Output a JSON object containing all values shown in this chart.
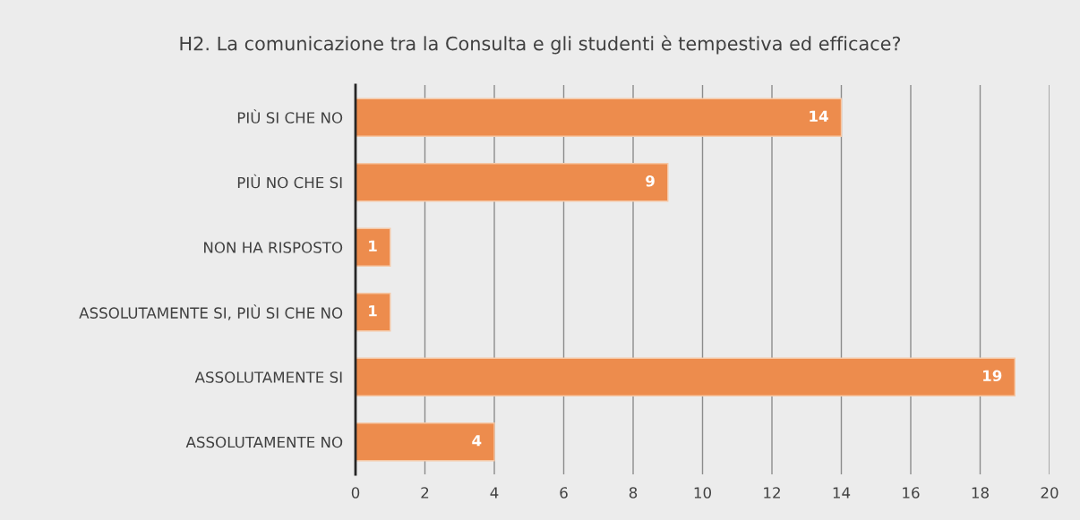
{
  "chart_data": {
    "type": "bar",
    "orientation": "horizontal",
    "title": "H2. La comunicazione tra la Consulta e gli studenti è tempestiva ed efficace?",
    "categories": [
      "PIÙ SI CHE NO",
      "PIÙ NO CHE SI",
      "NON HA RISPOSTO",
      "ASSOLUTAMENTE SI, PIÙ SI CHE NO",
      "ASSOLUTAMENTE SI",
      "ASSOLUTAMENTE NO"
    ],
    "values": [
      14,
      9,
      1,
      1,
      19,
      4
    ],
    "color": "#ed8c4d",
    "xlim": [
      0,
      20
    ],
    "xticks": [
      0,
      2,
      4,
      6,
      8,
      10,
      12,
      14,
      16,
      18,
      20
    ],
    "grid": "x",
    "data_labels": true
  }
}
